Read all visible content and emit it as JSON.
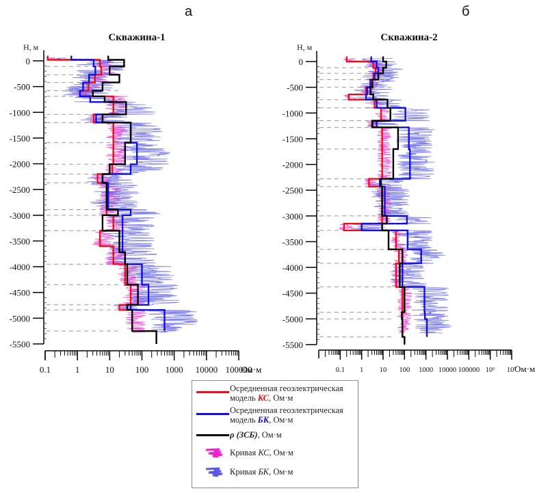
{
  "panel_labels": [
    "а",
    "б"
  ],
  "chart_data": [
    {
      "type": "line",
      "title": "Скважина-1",
      "ylabel": "Н, м",
      "xlabel": "Ом·м",
      "xscale": "log",
      "xlim": [
        0.1,
        100000
      ],
      "ylim": [
        -5500,
        100
      ],
      "x_tick_labels": [
        "0.1",
        "1",
        "10",
        "100",
        "1000",
        "10000",
        "100000"
      ],
      "x_tick_values": [
        0.1,
        1,
        10,
        100,
        1000,
        10000,
        100000
      ],
      "y_tick_labels": [
        "0",
        "-500",
        "-1000",
        "-1500",
        "-2000",
        "-2500",
        "-3000",
        "-3500",
        "-4000",
        "-4500",
        "-5000",
        "-5500"
      ],
      "y_tick_values": [
        0,
        -500,
        -1000,
        -1500,
        -2000,
        -2500,
        -3000,
        -3500,
        -4000,
        -4500,
        -5000,
        -5500
      ],
      "layer_boundaries": [
        -110,
        -270,
        -420,
        -580,
        -690,
        -1040,
        -1200,
        -1590,
        -2010,
        -2200,
        -2370,
        -2890,
        -3000,
        -3300,
        -3950,
        -4350,
        -4740,
        -4840,
        -5250
      ],
      "series": [
        {
          "name": "КС model",
          "color": "#e8101a",
          "steps": [
            {
              "top": 100,
              "bottom": 20,
              "value": 0.12
            },
            {
              "top": 20,
              "bottom": 20,
              "value": 0.65
            },
            {
              "top": 20,
              "bottom": -110,
              "value": 5
            },
            {
              "top": -110,
              "bottom": -270,
              "value": 5.5
            },
            {
              "top": -270,
              "bottom": -420,
              "value": 3.5
            },
            {
              "top": -420,
              "bottom": -580,
              "value": 2.2
            },
            {
              "top": -580,
              "bottom": -690,
              "value": 1.2
            },
            {
              "top": -690,
              "bottom": -1040,
              "value": 13
            },
            {
              "top": -1040,
              "bottom": -1200,
              "value": 3.2
            },
            {
              "top": -1200,
              "bottom": -2010,
              "value": 13
            },
            {
              "top": -2010,
              "bottom": -2200,
              "value": 12
            },
            {
              "top": -2200,
              "bottom": -2370,
              "value": 4.2
            },
            {
              "top": -2370,
              "bottom": -3000,
              "value": 8
            },
            {
              "top": -3000,
              "bottom": -3300,
              "value": 13
            },
            {
              "top": -3300,
              "bottom": -3600,
              "value": 5
            },
            {
              "top": -3600,
              "bottom": -3950,
              "value": 13
            },
            {
              "top": -3950,
              "bottom": -4350,
              "value": 30
            },
            {
              "top": -4350,
              "bottom": -4740,
              "value": 45
            },
            {
              "top": -4740,
              "bottom": -4840,
              "value": 20
            },
            {
              "top": -4840,
              "bottom": -5250,
              "value": 50
            }
          ]
        },
        {
          "name": "БК model",
          "color": "#1010dd",
          "steps": [
            {
              "top": 100,
              "bottom": 20,
              "value": 0.65
            },
            {
              "top": 20,
              "bottom": -110,
              "value": 3.2
            },
            {
              "top": -110,
              "bottom": -270,
              "value": 3.6
            },
            {
              "top": -270,
              "bottom": -420,
              "value": 2.3
            },
            {
              "top": -420,
              "bottom": -580,
              "value": 1.5
            },
            {
              "top": -580,
              "bottom": -690,
              "value": 1.2
            },
            {
              "top": -690,
              "bottom": -800,
              "value": 2.5
            },
            {
              "top": -800,
              "bottom": -1040,
              "value": 32
            },
            {
              "top": -1040,
              "bottom": -1200,
              "value": 3.8
            },
            {
              "top": -1200,
              "bottom": -1590,
              "value": 45
            },
            {
              "top": -1590,
              "bottom": -2010,
              "value": 70
            },
            {
              "top": -2010,
              "bottom": -2200,
              "value": 45
            },
            {
              "top": -2200,
              "bottom": -2370,
              "value": 6
            },
            {
              "top": -2370,
              "bottom": -2890,
              "value": 9
            },
            {
              "top": -2890,
              "bottom": -3000,
              "value": 45
            },
            {
              "top": -3000,
              "bottom": -3720,
              "value": 25
            },
            {
              "top": -3720,
              "bottom": -3950,
              "value": 30
            },
            {
              "top": -3950,
              "bottom": -4350,
              "value": 100
            },
            {
              "top": -4350,
              "bottom": -4740,
              "value": 160
            },
            {
              "top": -4740,
              "bottom": -4840,
              "value": 45
            },
            {
              "top": -4840,
              "bottom": -5250,
              "value": 500
            }
          ]
        },
        {
          "name": "ρ (ЗСБ) model",
          "color": "#000000",
          "steps": [
            {
              "top": 100,
              "bottom": 20,
              "value": 9
            },
            {
              "top": 20,
              "bottom": -110,
              "value": 28
            },
            {
              "top": -110,
              "bottom": -270,
              "value": 10
            },
            {
              "top": -270,
              "bottom": -420,
              "value": 20
            },
            {
              "top": -420,
              "bottom": -580,
              "value": 6
            },
            {
              "top": -580,
              "bottom": -690,
              "value": 3
            },
            {
              "top": -690,
              "bottom": -800,
              "value": 7
            },
            {
              "top": -800,
              "bottom": -1040,
              "value": 32
            },
            {
              "top": -1040,
              "bottom": -1200,
              "value": 6
            },
            {
              "top": -1200,
              "bottom": -1590,
              "value": 45
            },
            {
              "top": -1590,
              "bottom": -2010,
              "value": 30
            },
            {
              "top": -2010,
              "bottom": -2200,
              "value": 10
            },
            {
              "top": -2200,
              "bottom": -2370,
              "value": 6
            },
            {
              "top": -2370,
              "bottom": -2890,
              "value": 8
            },
            {
              "top": -2890,
              "bottom": -3000,
              "value": 18
            },
            {
              "top": -3000,
              "bottom": -3300,
              "value": 6
            },
            {
              "top": -3300,
              "bottom": -3720,
              "value": 20
            },
            {
              "top": -3720,
              "bottom": -3950,
              "value": 30
            },
            {
              "top": -3950,
              "bottom": -4350,
              "value": 35
            },
            {
              "top": -4350,
              "bottom": -4740,
              "value": 75
            },
            {
              "top": -4740,
              "bottom": -4840,
              "value": 35
            },
            {
              "top": -4840,
              "bottom": -5250,
              "value": 50
            },
            {
              "top": -5250,
              "bottom": -5500,
              "value": 280
            }
          ]
        }
      ],
      "curves": [
        {
          "name": "Кривая КС",
          "color": "#ee22cc",
          "baseline_from": "КС model",
          "spread_decades": 0.35
        },
        {
          "name": "Кривая БК",
          "color": "#5a5ae6",
          "baseline_from": "БК model",
          "spread_decades": 0.8
        }
      ]
    },
    {
      "type": "line",
      "title": "Скважина-2",
      "ylabel": "Н, м",
      "xlabel": "Ом·м",
      "xscale": "log",
      "xlim": [
        0.01,
        10000000
      ],
      "ylim": [
        -5500,
        100
      ],
      "x_tick_labels": [
        "0.1",
        "1",
        "10",
        "100",
        "1000",
        "10000",
        "100000",
        "10⁶",
        "10⁷"
      ],
      "x_tick_values": [
        0.1,
        1,
        10,
        100,
        1000,
        10000,
        100000,
        1000000,
        10000000
      ],
      "y_tick_labels": [
        "0",
        "-500",
        "-1000",
        "-1500",
        "-2000",
        "-2500",
        "-3000",
        "-3500",
        "-4000",
        "-4500",
        "-5000",
        "-5500"
      ],
      "y_tick_values": [
        0,
        -500,
        -1000,
        -1500,
        -2000,
        -2500,
        -3000,
        -3500,
        -4000,
        -4500,
        -5000,
        -5500
      ],
      "layer_boundaries": [
        -120,
        -230,
        -350,
        -500,
        -740,
        -900,
        -1150,
        -1280,
        -1700,
        -2280,
        -2430,
        -3000,
        -3280,
        -3650,
        -3920,
        -4380,
        -4870,
        -5000,
        -5350
      ],
      "series": [
        {
          "name": "КС model",
          "color": "#e8101a",
          "steps": [
            {
              "top": 100,
              "bottom": 0,
              "value": 0.2
            },
            {
              "top": 0,
              "bottom": -120,
              "value": 3.5
            },
            {
              "top": -120,
              "bottom": -230,
              "value": 4.5
            },
            {
              "top": -230,
              "bottom": -350,
              "value": 3.5
            },
            {
              "top": -350,
              "bottom": -500,
              "value": 2.5
            },
            {
              "top": -500,
              "bottom": -640,
              "value": 1.6
            },
            {
              "top": -640,
              "bottom": -740,
              "value": 0.25
            },
            {
              "top": -740,
              "bottom": -900,
              "value": 4
            },
            {
              "top": -900,
              "bottom": -1150,
              "value": 8
            },
            {
              "top": -1150,
              "bottom": -1280,
              "value": 3
            },
            {
              "top": -1280,
              "bottom": -2280,
              "value": 9
            },
            {
              "top": -2280,
              "bottom": -2430,
              "value": 2.2
            },
            {
              "top": -2430,
              "bottom": -3150,
              "value": 9
            },
            {
              "top": -3150,
              "bottom": -3280,
              "value": 0.15
            },
            {
              "top": -3280,
              "bottom": -3650,
              "value": 40
            },
            {
              "top": -3650,
              "bottom": -3920,
              "value": 55
            },
            {
              "top": -3920,
              "bottom": -4380,
              "value": 40
            },
            {
              "top": -4380,
              "bottom": -5350,
              "value": 80
            }
          ]
        },
        {
          "name": "БК model",
          "color": "#1010dd",
          "steps": [
            {
              "top": 100,
              "bottom": 0,
              "value": 2.8
            },
            {
              "top": 0,
              "bottom": -120,
              "value": 5
            },
            {
              "top": -120,
              "bottom": -230,
              "value": 6
            },
            {
              "top": -230,
              "bottom": -350,
              "value": 4
            },
            {
              "top": -350,
              "bottom": -500,
              "value": 2.6
            },
            {
              "top": -500,
              "bottom": -640,
              "value": 1.8
            },
            {
              "top": -640,
              "bottom": -740,
              "value": 1.6
            },
            {
              "top": -740,
              "bottom": -900,
              "value": 5
            },
            {
              "top": -900,
              "bottom": -1150,
              "value": 110
            },
            {
              "top": -1150,
              "bottom": -1280,
              "value": 5
            },
            {
              "top": -1280,
              "bottom": -1700,
              "value": 160
            },
            {
              "top": -1700,
              "bottom": -2280,
              "value": 180
            },
            {
              "top": -2280,
              "bottom": -2430,
              "value": 7
            },
            {
              "top": -2430,
              "bottom": -3000,
              "value": 12
            },
            {
              "top": -3000,
              "bottom": -3150,
              "value": 130
            },
            {
              "top": -3150,
              "bottom": -3280,
              "value": 1
            },
            {
              "top": -3280,
              "bottom": -3650,
              "value": 140
            },
            {
              "top": -3650,
              "bottom": -3920,
              "value": 600
            },
            {
              "top": -3920,
              "bottom": -4380,
              "value": 80
            },
            {
              "top": -4380,
              "bottom": -4870,
              "value": 850
            },
            {
              "top": -4870,
              "bottom": -5000,
              "value": 900
            },
            {
              "top": -5000,
              "bottom": -5350,
              "value": 1100
            }
          ]
        },
        {
          "name": "ρ (ЗСБ) model",
          "color": "#000000",
          "steps": [
            {
              "top": 100,
              "bottom": 0,
              "value": 10
            },
            {
              "top": 0,
              "bottom": -120,
              "value": 14
            },
            {
              "top": -120,
              "bottom": -230,
              "value": 10
            },
            {
              "top": -230,
              "bottom": -350,
              "value": 6
            },
            {
              "top": -350,
              "bottom": -500,
              "value": 3.2
            },
            {
              "top": -500,
              "bottom": -640,
              "value": 2.6
            },
            {
              "top": -640,
              "bottom": -740,
              "value": 3.5
            },
            {
              "top": -740,
              "bottom": -900,
              "value": 16
            },
            {
              "top": -900,
              "bottom": -1150,
              "value": 22
            },
            {
              "top": -1150,
              "bottom": -1280,
              "value": 3.2
            },
            {
              "top": -1280,
              "bottom": -1700,
              "value": 50
            },
            {
              "top": -1700,
              "bottom": -2280,
              "value": 30
            },
            {
              "top": -2280,
              "bottom": -2430,
              "value": 8
            },
            {
              "top": -2430,
              "bottom": -3000,
              "value": 9
            },
            {
              "top": -3000,
              "bottom": -3150,
              "value": 15
            },
            {
              "top": -3150,
              "bottom": -3280,
              "value": 9
            },
            {
              "top": -3280,
              "bottom": -3650,
              "value": 18
            },
            {
              "top": -3650,
              "bottom": -3920,
              "value": 80
            },
            {
              "top": -3920,
              "bottom": -4380,
              "value": 60
            },
            {
              "top": -4380,
              "bottom": -4870,
              "value": 100
            },
            {
              "top": -4870,
              "bottom": -5000,
              "value": 75
            },
            {
              "top": -5000,
              "bottom": -5350,
              "value": 80
            },
            {
              "top": -5350,
              "bottom": -5500,
              "value": 100
            }
          ]
        }
      ],
      "curves": [
        {
          "name": "Кривая КС",
          "color": "#ee22cc",
          "baseline_from": "КС model",
          "spread_decades": 0.35
        },
        {
          "name": "Кривая БК",
          "color": "#5a5ae6",
          "baseline_from": "БК model",
          "spread_decades": 0.9
        }
      ]
    }
  ],
  "legend": {
    "items": [
      {
        "type": "line",
        "color": "#e8101a",
        "text_pre": "Осредненная геоэлектрическая модель ",
        "text_em": "КС",
        "text_post": ", Ом·м"
      },
      {
        "type": "line",
        "color": "#1010dd",
        "text_pre": "Осредненная геоэлектрическая модель ",
        "text_em": "БК",
        "text_post": ", Ом·м"
      },
      {
        "type": "line",
        "color": "#000000",
        "text_pre": "",
        "text_em": "ρ (ЗСБ)",
        "text_post": ", Ом·м"
      },
      {
        "type": "curve",
        "color": "#ee22cc",
        "text_pre": "Кривая ",
        "text_em": "КС",
        "text_post": ", Ом·м"
      },
      {
        "type": "curve",
        "color": "#5a5ae6",
        "text_pre": "Кривая ",
        "text_em": "БК",
        "text_post": ", Ом·м"
      }
    ]
  }
}
